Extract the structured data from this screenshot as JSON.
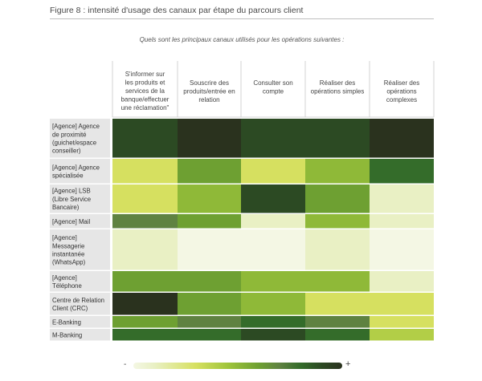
{
  "figure_title": "Figure 8 : intensité d'usage des canaux par étape du parcours client",
  "chart_data": {
    "type": "heatmap",
    "question": "Quels sont les principaux canaux utilisés pour les opérations suivantes :",
    "columns": [
      [
        "S'informer sur",
        "les produits et",
        "services de la",
        "banque/effectuer",
        "une réclamation\""
      ],
      [
        "Souscrire des",
        "produits/entrée en",
        "relation"
      ],
      [
        "Consulter son",
        "compte"
      ],
      [
        "Réaliser des",
        "opérations simples"
      ],
      [
        "Réaliser des",
        "opérations",
        "complexes"
      ]
    ],
    "rows": [
      [
        "[Agence] Agence",
        "de proximité",
        "(guichet/espace",
        "conseiller)"
      ],
      [
        "[Agence] Agence",
        "spécialisée"
      ],
      [
        "[Agence] LSB",
        "(Libre Service",
        "Bancaire)"
      ],
      [
        "[Agence] Mail"
      ],
      [
        "[Agence]",
        "Messagerie",
        "instantanée",
        "(WhatsApp)"
      ],
      [
        "[Agence]",
        "Téléphone"
      ],
      [
        "Centre de Relation",
        "Client (CRC)"
      ],
      [
        "E-Banking"
      ],
      [
        "M-Banking"
      ]
    ],
    "values": [
      [
        9,
        10,
        9,
        9,
        10
      ],
      [
        3,
        6,
        3,
        5,
        8
      ],
      [
        3,
        5,
        9,
        6,
        1
      ],
      [
        7,
        6,
        1,
        5,
        1
      ],
      [
        1,
        0,
        0,
        1,
        0
      ],
      [
        6,
        6,
        5,
        5,
        1
      ],
      [
        10,
        6,
        5,
        3,
        3
      ],
      [
        6,
        7,
        8,
        7,
        3
      ],
      [
        8,
        8,
        9,
        8,
        4
      ]
    ],
    "scale_min": 0,
    "scale_max": 10,
    "legend": {
      "low_label": "-",
      "high_label": "+"
    }
  }
}
